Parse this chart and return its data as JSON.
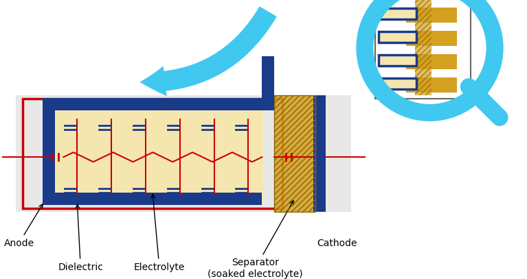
{
  "bg_color": "#f0f0f0",
  "anode_color": "#cc0000",
  "cathode_color": "#1a3a8a",
  "electrolyte_fill": "#f5e6b0",
  "separator_color": "#d4a020",
  "arrow_color": "#40c8f0",
  "circuit_line_color": "#cc0000",
  "blue_border_color": "#1a3a8a",
  "red_border_color": "#cc0000",
  "magnifier_color": "#40c8f0",
  "title": "",
  "labels": {
    "anode": "Anode",
    "dielectric": "Dielectric",
    "electrolyte": "Electrolyte",
    "cathode": "Cathode",
    "separator": "Separator\n(soaked electrolyte)"
  },
  "fig_width": 7.67,
  "fig_height": 4.07
}
